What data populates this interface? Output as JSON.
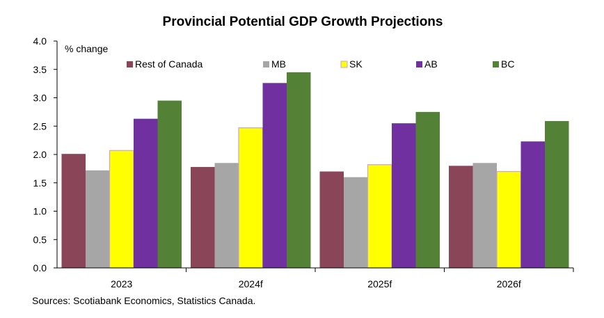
{
  "chart_data": {
    "type": "bar",
    "title": "Provincial Potential GDP Growth Projections",
    "ylabel": "% change",
    "source": "Sources: Scotiabank Economics, Statistics Canada.",
    "categories": [
      "2023",
      "2024f",
      "2025f",
      "2026f"
    ],
    "ylim": [
      0,
      4
    ],
    "yticks": [
      "0.0",
      "0.5",
      "1.0",
      "1.5",
      "2.0",
      "2.5",
      "3.0",
      "3.5",
      "4.0"
    ],
    "grid": false,
    "legend_position": "top",
    "series": [
      {
        "name": "Rest of Canada",
        "color": "#8b4558",
        "values": [
          2.01,
          1.78,
          1.7,
          1.8
        ]
      },
      {
        "name": "MB",
        "color": "#a6a6a6",
        "values": [
          1.72,
          1.85,
          1.6,
          1.85
        ]
      },
      {
        "name": "SK",
        "color": "#ffff00",
        "values": [
          2.07,
          2.47,
          1.82,
          1.7
        ]
      },
      {
        "name": "AB",
        "color": "#7030a0",
        "values": [
          2.63,
          3.26,
          2.55,
          2.23
        ]
      },
      {
        "name": "BC",
        "color": "#538135",
        "values": [
          2.95,
          3.45,
          2.75,
          2.59
        ]
      }
    ]
  }
}
